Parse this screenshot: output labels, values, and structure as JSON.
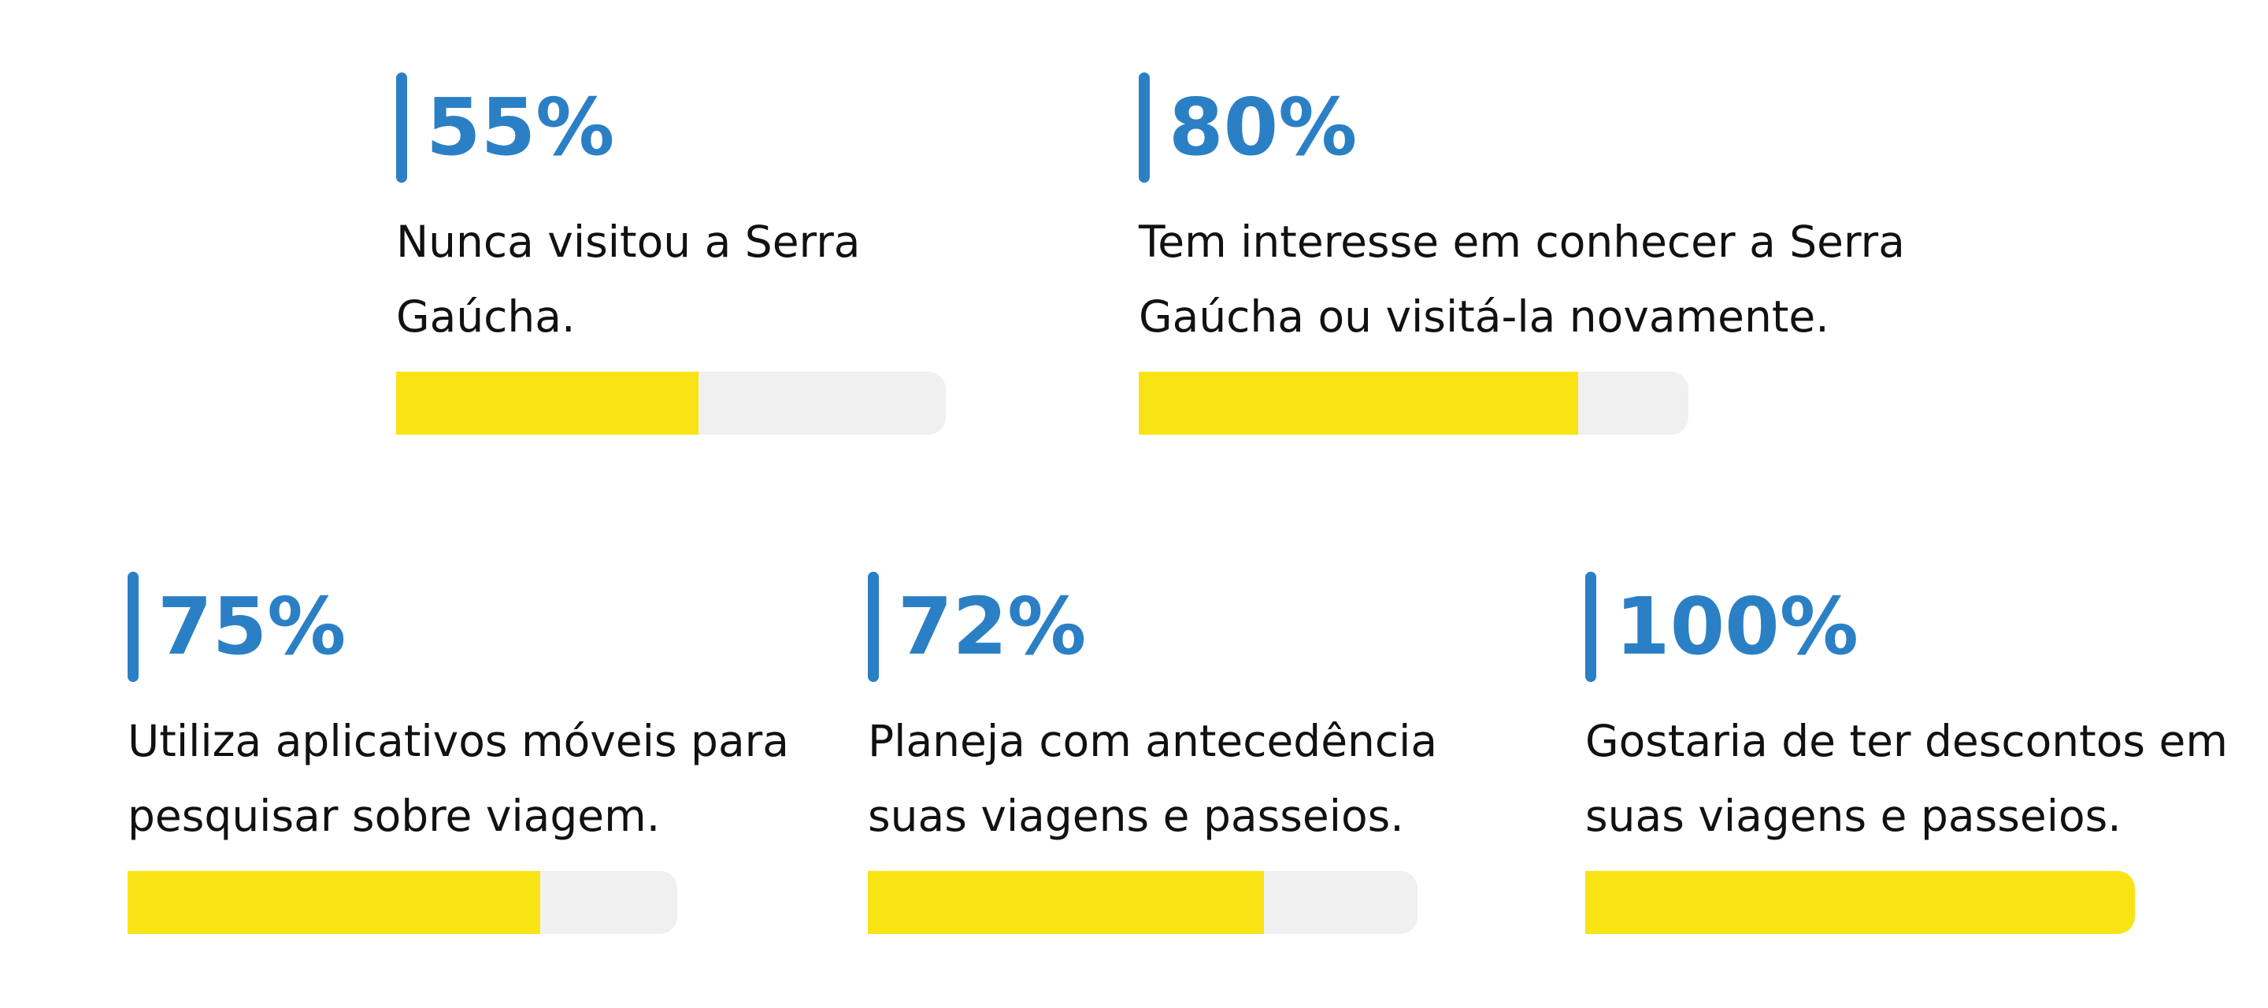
{
  "colors": {
    "accent_blue": "#2b80c5",
    "bar_yellow": "#f8e415",
    "bar_track_gray": "#f0f0f0",
    "text_black": "#111111",
    "background": "#ffffff"
  },
  "stats": [
    {
      "id": "never-visited",
      "percent_label": "55%",
      "percent": 55,
      "lines": [
        "Nunca visitou a Serra",
        "Gaúcha."
      ]
    },
    {
      "id": "interest-in-visiting",
      "percent_label": "80%",
      "percent": 80,
      "lines": [
        "Tem interesse em conhecer a Serra",
        "Gaúcha ou visitá-la novamente."
      ]
    },
    {
      "id": "uses-mobile-apps",
      "percent_label": "75%",
      "percent": 75,
      "lines": [
        "Utiliza aplicativos móveis para",
        "pesquisar sobre viagem."
      ]
    },
    {
      "id": "plans-ahead",
      "percent_label": "72%",
      "percent": 72,
      "lines": [
        "Planeja com antecedência",
        "suas viagens e passeios."
      ]
    },
    {
      "id": "wants-discounts",
      "percent_label": "100%",
      "percent": 100,
      "lines": [
        "Gostaria de ter descontos em",
        "suas viagens e passeios."
      ]
    }
  ],
  "chart_data": {
    "type": "bar",
    "categories": [
      "Nunca visitou a Serra Gaúcha.",
      "Tem interesse em conhecer a Serra Gaúcha ou visitá-la novamente.",
      "Utiliza aplicativos móveis para pesquisar sobre viagem.",
      "Planeja com antecedência suas viagens e passeios.",
      "Gostaria de ter descontos em suas viagens e passeios."
    ],
    "values": [
      55,
      80,
      75,
      72,
      100
    ],
    "value_labels": [
      "55%",
      "80%",
      "75%",
      "72%",
      "100%"
    ],
    "title": "",
    "xlabel": "",
    "ylabel": "",
    "ylim": [
      0,
      100
    ],
    "orientation": "horizontal",
    "grid": false,
    "legend": false,
    "bar_color": "#f8e415",
    "track_color": "#f0f0f0",
    "label_color": "#2b80c5"
  }
}
